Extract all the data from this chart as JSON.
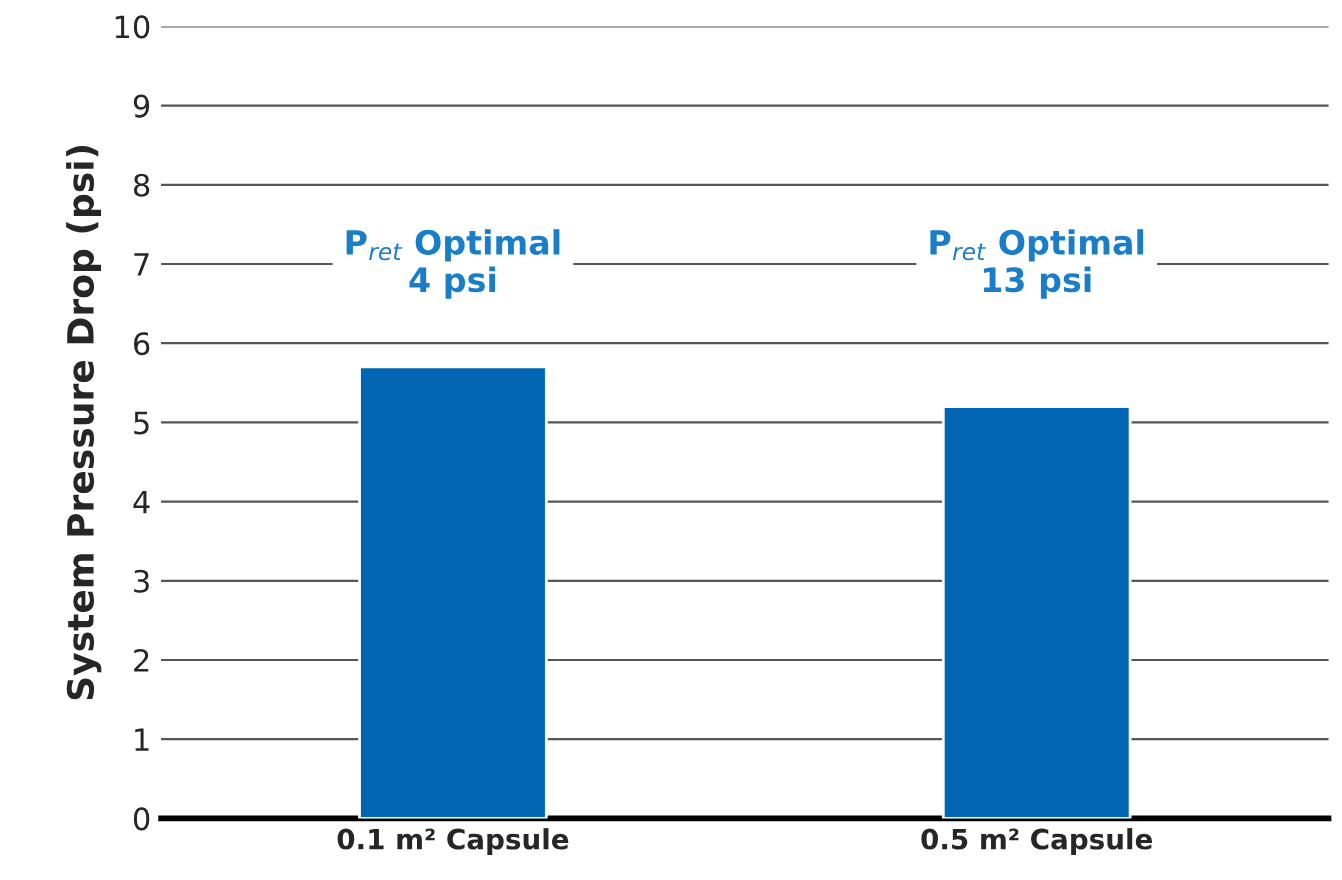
{
  "chart_data": {
    "type": "bar",
    "ylabel": "System Pressure Drop (psi)",
    "categories": [
      "0.1 m² Capsule",
      "0.5 m² Capsule"
    ],
    "values": [
      5.7,
      5.2
    ],
    "color": "#0066b3",
    "ylim": [
      0,
      10
    ],
    "yticks": [
      0,
      1,
      2,
      3,
      4,
      5,
      6,
      7,
      8,
      9,
      10
    ],
    "grid": "y",
    "annotations": [
      "P$_{ret}$ Optimal\n4 psi",
      "P$_{ret}$ Optimal\n13 psi"
    ]
  }
}
